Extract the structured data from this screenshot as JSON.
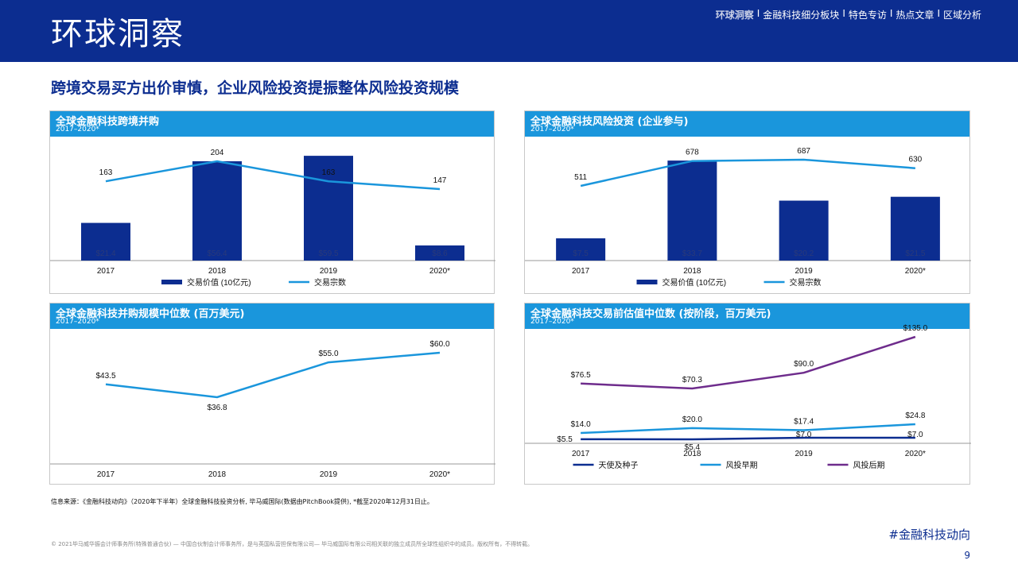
{
  "header": {
    "title": "环球洞察",
    "nav": [
      {
        "label": "环球洞察",
        "active": true
      },
      {
        "label": "金融科技细分板块",
        "active": false
      },
      {
        "label": "特色专访",
        "active": false
      },
      {
        "label": "热点文章",
        "active": false
      },
      {
        "label": "区域分析",
        "active": false
      }
    ],
    "separator": "I"
  },
  "subtitle": "跨境交易买方出价审慎，企业风险投资提振整体风险投资规模",
  "panels": {
    "p1": {
      "title": "全球金融科技跨境并购",
      "period": "2017–2020*"
    },
    "p2": {
      "title": "全球金融科技风险投资 (企业参与)",
      "period": "2017–2020*"
    },
    "p3": {
      "title": "全球金融科技并购规模中位数 (百万美元)",
      "period": "2017–2020*"
    },
    "p4": {
      "title": "全球金融科技交易前估值中位数 (按阶段，百万美元)",
      "period": "2017–2020*"
    }
  },
  "chart_data": [
    {
      "type": "bar",
      "title": "全球金融科技跨境并购",
      "categories": [
        "2017",
        "2018",
        "2019",
        "2020*"
      ],
      "series": [
        {
          "name": "交易价值 (10亿元)",
          "type": "bar",
          "values": [
            21.4,
            56.4,
            59.5,
            8.6
          ],
          "labels": [
            "$21.4",
            "$56.4",
            "$59.5",
            "$8.6"
          ],
          "color": "#0c2d90"
        },
        {
          "name": "交易宗数",
          "type": "line",
          "values": [
            163,
            204,
            163,
            147
          ],
          "labels": [
            "163",
            "204",
            "163",
            "147"
          ],
          "color": "#1a96dc"
        }
      ]
    },
    {
      "type": "bar",
      "title": "全球金融科技风险投资 (企业参与)",
      "categories": [
        "2017",
        "2018",
        "2019",
        "2020*"
      ],
      "series": [
        {
          "name": "交易价值 (10亿元)",
          "type": "bar",
          "values": [
            7.5,
            33.7,
            20.2,
            21.5
          ],
          "labels": [
            "$7.5",
            "$33.7",
            "$20.2",
            "$21.5"
          ],
          "color": "#0c2d90"
        },
        {
          "name": "交易宗数",
          "type": "line",
          "values": [
            511,
            678,
            687,
            630
          ],
          "labels": [
            "511",
            "678",
            "687",
            "630"
          ],
          "color": "#1a96dc"
        }
      ]
    },
    {
      "type": "line",
      "title": "全球金融科技并购规模中位数 (百万美元)",
      "categories": [
        "2017",
        "2018",
        "2019",
        "2020*"
      ],
      "series": [
        {
          "type": "line",
          "values": [
            43.5,
            36.8,
            55.0,
            60.0
          ],
          "labels": [
            "$43.5",
            "$36.8",
            "$55.0",
            "$60.0"
          ],
          "color": "#1a96dc"
        }
      ]
    },
    {
      "type": "line",
      "title": "全球金融科技交易前估值中位数 (按阶段，百万美元)",
      "categories": [
        "2017",
        "2018",
        "2019",
        "2020*"
      ],
      "series": [
        {
          "name": "天使及种子",
          "type": "line",
          "values": [
            5.5,
            5.4,
            7.0,
            7.0
          ],
          "labels": [
            "$5.5",
            "$5.4",
            "$7.0",
            "$7.0"
          ],
          "color": "#0c2d90"
        },
        {
          "name": "风投早期",
          "type": "line",
          "values": [
            14.0,
            20.0,
            17.4,
            24.8
          ],
          "labels": [
            "$14.0",
            "$20.0",
            "$17.4",
            "$24.8"
          ],
          "color": "#1a96dc"
        },
        {
          "name": "风投后期",
          "type": "line",
          "values": [
            76.5,
            70.3,
            90.0,
            135.0
          ],
          "labels": [
            "$76.5",
            "$70.3",
            "$90.0",
            "$135.0"
          ],
          "color": "#6e2c8c"
        }
      ]
    }
  ],
  "footnote": "信息来源：《金融科技动向》（2020年下半年）全球金融科技投资分析, 毕马威国际(数据由PitchBook提供), *截至2020年12月31日止。",
  "copyright": "© 2021毕马威华振会计师事务所(特殊普通合伙) — 中国合伙制会计师事务所，是与英国私营担保有限公司— 毕马威国际有限公司相关联的独立成员所全球性组织中的成员。版权所有，不得转载。",
  "hashtag": "#金融科技动向",
  "page_number": "9"
}
